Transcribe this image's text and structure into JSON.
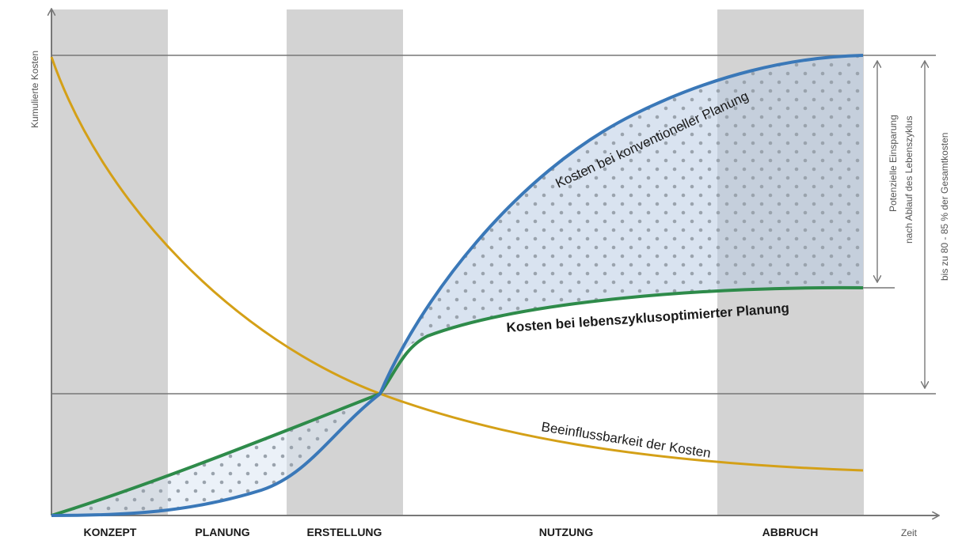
{
  "axes": {
    "y_label": "Kumulierte Kosten",
    "x_label": "Zeit"
  },
  "phases": [
    {
      "label": "KONZEPT",
      "shaded": true
    },
    {
      "label": "PLANUNG",
      "shaded": false
    },
    {
      "label": "ERSTELLUNG",
      "shaded": true
    },
    {
      "label": "NUTZUNG",
      "shaded": false
    },
    {
      "label": "ABBRUCH",
      "shaded": true
    }
  ],
  "curves": {
    "conventional": {
      "label": "Kosten bei konventioneller Planung",
      "color": "#3a78b8"
    },
    "optimized": {
      "label": "Kosten bei lebenszyklusoptimierter Planung",
      "color": "#2e8b4a"
    },
    "influence": {
      "label": "Beeinflussbarkeit der Kosten",
      "color": "#d4a017"
    }
  },
  "annotations": {
    "savings_line1": "Potenzielle Einsparung",
    "savings_line2": "nach Ablauf des Lebenszyklus",
    "share": "bis zu 80 - 85 % der Gesamtkosten"
  },
  "colors": {
    "phase_shade": "#d3d3d3",
    "axis": "#777777",
    "area_fill": "#dbe6f3",
    "dots": "#9aa3ad"
  }
}
